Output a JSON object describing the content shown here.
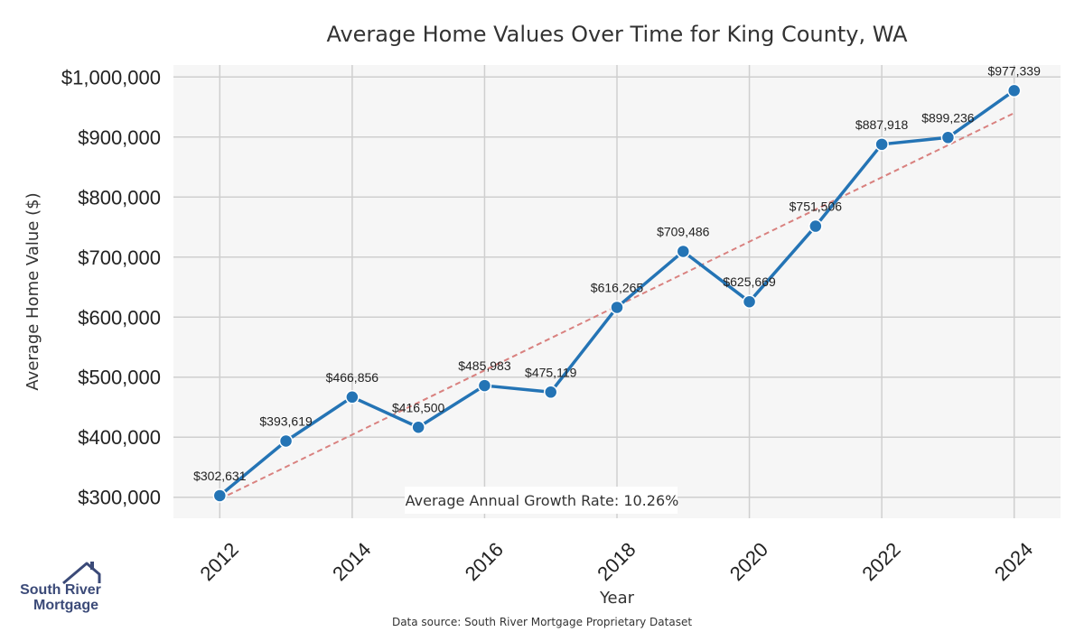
{
  "chart_data": {
    "type": "line",
    "title": "Average Home Values Over Time for King County, WA",
    "xlabel": "Year",
    "ylabel": "Average Home Value ($)",
    "x": [
      2012,
      2013,
      2014,
      2015,
      2016,
      2017,
      2018,
      2019,
      2020,
      2021,
      2022,
      2023,
      2024
    ],
    "values": [
      302631,
      393619,
      466856,
      416500,
      485983,
      475119,
      616265,
      709486,
      625669,
      751506,
      887918,
      899236,
      977339
    ],
    "data_labels": [
      "$302,631",
      "$393,619",
      "$466,856",
      "$416,500",
      "$485,983",
      "$475,119",
      "$616,265",
      "$709,486",
      "$625,669",
      "$751,506",
      "$887,918",
      "$899,236",
      "$977,339"
    ],
    "x_ticks": [
      "2012",
      "2014",
      "2016",
      "2018",
      "2020",
      "2022",
      "2024"
    ],
    "y_ticks": [
      300000,
      400000,
      500000,
      600000,
      700000,
      800000,
      900000,
      1000000
    ],
    "y_tick_labels": [
      "$300,000",
      "$400,000",
      "$500,000",
      "$600,000",
      "$700,000",
      "$800,000",
      "$900,000",
      "$1,000,000"
    ],
    "ylim": [
      265000,
      1020000
    ],
    "xlim": [
      2011.3,
      2024.7
    ],
    "trend_line": {
      "x": [
        2012,
        2024
      ],
      "y": [
        297000,
        940000
      ]
    },
    "grid": true,
    "annotation": "Average Annual Growth Rate: 10.26%",
    "source": "Data source: South River Mortgage Proprietary Dataset"
  },
  "branding": {
    "line1": "South River",
    "line2": "Mortgage"
  },
  "colors": {
    "series": "#2474b5",
    "trend": "#d9817f",
    "plot_bg": "#f6f6f6",
    "grid": "#cfcfcf",
    "logo": "#3b4a78"
  },
  "icons": {
    "logo": "house-roof-icon"
  }
}
